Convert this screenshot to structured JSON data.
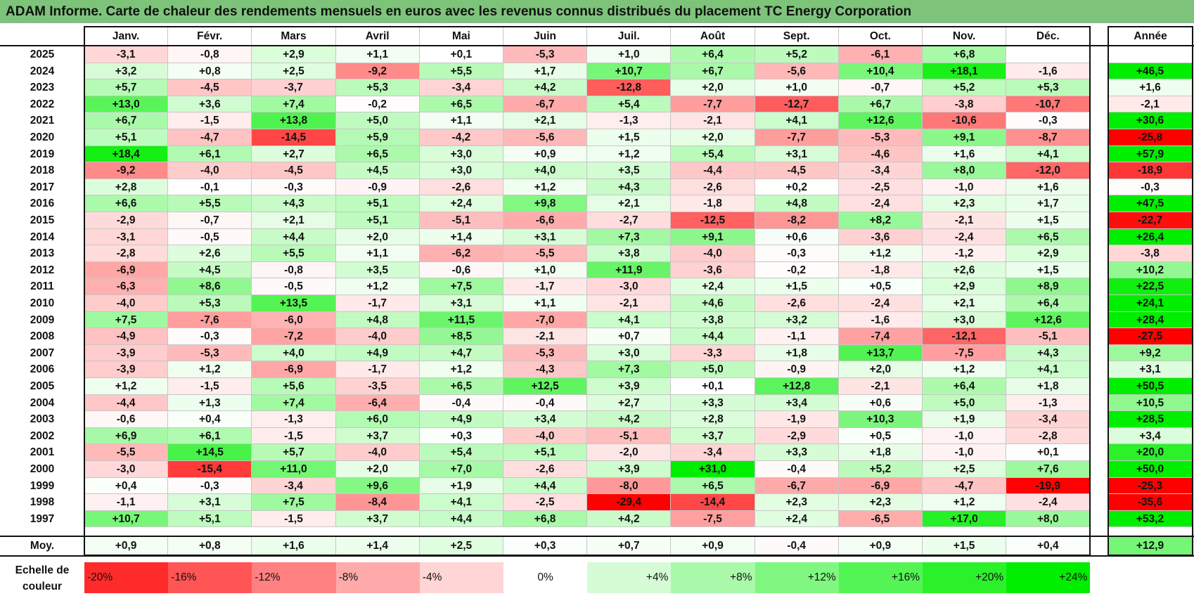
{
  "title": "ADAM Informe. Carte de chaleur des rendements mensuels en euros avec les revenus connus distribués du placement TC Energy Corporation",
  "chart_data": {
    "type": "heatmap",
    "title": "ADAM Informe. Carte de chaleur des rendements mensuels en euros avec les revenus connus distribués du placement TC Energy Corporation",
    "months": [
      "Janv.",
      "Févr.",
      "Mars",
      "Avril",
      "Mai",
      "Juin",
      "Juil.",
      "Août",
      "Sept.",
      "Oct.",
      "Nov.",
      "Déc."
    ],
    "year_header": "Année",
    "average_label": "Moy.",
    "rows": [
      {
        "year": "2025",
        "months": [
          "-3,1",
          "-0,8",
          "+2,9",
          "+1,1",
          "+0,1",
          "-5,3",
          "+1,0",
          "+6,4",
          "+5,2",
          "-6,1",
          "+6,8",
          ""
        ],
        "annual": ""
      },
      {
        "year": "2024",
        "months": [
          "+3,2",
          "+0,8",
          "+2,5",
          "-9,2",
          "+5,5",
          "+1,7",
          "+10,7",
          "+6,7",
          "-5,6",
          "+10,4",
          "+18,1",
          "-1,6"
        ],
        "annual": "+46,5"
      },
      {
        "year": "2023",
        "months": [
          "+5,7",
          "-4,5",
          "-3,7",
          "+5,3",
          "-3,4",
          "+4,2",
          "-12,8",
          "+2,0",
          "+1,0",
          "-0,7",
          "+5,2",
          "+5,3"
        ],
        "annual": "+1,6"
      },
      {
        "year": "2022",
        "months": [
          "+13,0",
          "+3,6",
          "+7,4",
          "-0,2",
          "+6,5",
          "-6,7",
          "+5,4",
          "-7,7",
          "-12,7",
          "+6,7",
          "-3,8",
          "-10,7"
        ],
        "annual": "-2,1"
      },
      {
        "year": "2021",
        "months": [
          "+6,7",
          "-1,5",
          "+13,8",
          "+5,0",
          "+1,1",
          "+2,1",
          "-1,3",
          "-2,1",
          "+4,1",
          "+12,6",
          "-10,6",
          "-0,3"
        ],
        "annual": "+30,6"
      },
      {
        "year": "2020",
        "months": [
          "+5,1",
          "-4,7",
          "-14,5",
          "+5,9",
          "-4,2",
          "-5,6",
          "+1,5",
          "+2,0",
          "-7,7",
          "-5,3",
          "+9,1",
          "-8,7"
        ],
        "annual": "-25,8"
      },
      {
        "year": "2019",
        "months": [
          "+18,4",
          "+6,1",
          "+2,7",
          "+6,5",
          "+3,0",
          "+0,9",
          "+1,2",
          "+5,4",
          "+3,1",
          "-4,6",
          "+1,6",
          "+4,1"
        ],
        "annual": "+57,9"
      },
      {
        "year": "2018",
        "months": [
          "-9,2",
          "-4,0",
          "-4,5",
          "+4,5",
          "+3,0",
          "+4,0",
          "+3,5",
          "-4,4",
          "-4,5",
          "-3,4",
          "+8,0",
          "-12,0"
        ],
        "annual": "-18,9"
      },
      {
        "year": "2017",
        "months": [
          "+2,8",
          "-0,1",
          "-0,3",
          "-0,9",
          "-2,6",
          "+1,2",
          "+4,3",
          "-2,6",
          "+0,2",
          "-2,5",
          "-1,0",
          "+1,6"
        ],
        "annual": "-0,3"
      },
      {
        "year": "2016",
        "months": [
          "+6,6",
          "+5,5",
          "+4,3",
          "+5,1",
          "+2,4",
          "+9,8",
          "+2,1",
          "-1,8",
          "+4,8",
          "-2,4",
          "+2,3",
          "+1,7"
        ],
        "annual": "+47,5"
      },
      {
        "year": "2015",
        "months": [
          "-2,9",
          "-0,7",
          "+2,1",
          "+5,1",
          "-5,1",
          "-6,6",
          "-2,7",
          "-12,5",
          "-8,2",
          "+8,2",
          "-2,1",
          "+1,5"
        ],
        "annual": "-22,7"
      },
      {
        "year": "2014",
        "months": [
          "-3,1",
          "-0,5",
          "+4,4",
          "+2,0",
          "+1,4",
          "+3,1",
          "+7,3",
          "+9,1",
          "+0,6",
          "-3,6",
          "-2,4",
          "+6,5"
        ],
        "annual": "+26,4"
      },
      {
        "year": "2013",
        "months": [
          "-2,8",
          "+2,6",
          "+5,5",
          "+1,1",
          "-6,2",
          "-5,5",
          "+3,8",
          "-4,0",
          "-0,3",
          "+1,2",
          "-1,2",
          "+2,9"
        ],
        "annual": "-3,8"
      },
      {
        "year": "2012",
        "months": [
          "-6,9",
          "+4,5",
          "-0,8",
          "+3,5",
          "-0,6",
          "+1,0",
          "+11,9",
          "-3,6",
          "-0,2",
          "-1,8",
          "+2,6",
          "+1,5"
        ],
        "annual": "+10,2"
      },
      {
        "year": "2011",
        "months": [
          "-6,3",
          "+8,6",
          "-0,5",
          "+1,2",
          "+7,5",
          "-1,7",
          "-3,0",
          "+2,4",
          "+1,5",
          "+0,5",
          "+2,9",
          "+8,9"
        ],
        "annual": "+22,5"
      },
      {
        "year": "2010",
        "months": [
          "-4,0",
          "+5,3",
          "+13,5",
          "-1,7",
          "+3,1",
          "+1,1",
          "-2,1",
          "+4,6",
          "-2,6",
          "-2,4",
          "+2,1",
          "+6,4"
        ],
        "annual": "+24,1"
      },
      {
        "year": "2009",
        "months": [
          "+7,5",
          "-7,6",
          "-6,0",
          "+4,8",
          "+11,5",
          "-7,0",
          "+4,1",
          "+3,8",
          "+3,2",
          "-1,6",
          "+3,0",
          "+12,6"
        ],
        "annual": "+28,4"
      },
      {
        "year": "2008",
        "months": [
          "-4,9",
          "-0,3",
          "-7,2",
          "-4,0",
          "+8,5",
          "-2,1",
          "+0,7",
          "+4,4",
          "-1,1",
          "-7,4",
          "-12,1",
          "-5,1"
        ],
        "annual": "-27,5"
      },
      {
        "year": "2007",
        "months": [
          "-3,9",
          "-5,3",
          "+4,0",
          "+4,9",
          "+4,7",
          "-5,3",
          "+3,0",
          "-3,3",
          "+1,8",
          "+13,7",
          "-7,5",
          "+4,3"
        ],
        "annual": "+9,2"
      },
      {
        "year": "2006",
        "months": [
          "-3,9",
          "+1,2",
          "-6,9",
          "-1,7",
          "+1,2",
          "-4,3",
          "+7,3",
          "+5,0",
          "-0,9",
          "+2,0",
          "+1,2",
          "+4,1"
        ],
        "annual": "+3,1"
      },
      {
        "year": "2005",
        "months": [
          "+1,2",
          "-1,5",
          "+5,6",
          "-3,5",
          "+6,5",
          "+12,5",
          "+3,9",
          "+0,1",
          "+12,8",
          "-2,1",
          "+6,4",
          "+1,8"
        ],
        "annual": "+50,5"
      },
      {
        "year": "2004",
        "months": [
          "-4,4",
          "+1,3",
          "+7,4",
          "-6,4",
          "-0,4",
          "-0,4",
          "+2,7",
          "+3,3",
          "+3,4",
          "+0,6",
          "+5,0",
          "-1,3"
        ],
        "annual": "+10,5"
      },
      {
        "year": "2003",
        "months": [
          "-0,6",
          "+0,4",
          "-1,3",
          "+6,0",
          "+4,9",
          "+3,4",
          "+4,2",
          "+2,8",
          "-1,9",
          "+10,3",
          "+1,9",
          "-3,4"
        ],
        "annual": "+28,5"
      },
      {
        "year": "2002",
        "months": [
          "+6,9",
          "+6,1",
          "-1,5",
          "+3,7",
          "+0,3",
          "-4,0",
          "-5,1",
          "+3,7",
          "-2,9",
          "+0,5",
          "-1,0",
          "-2,8"
        ],
        "annual": "+3,4"
      },
      {
        "year": "2001",
        "months": [
          "-5,5",
          "+14,5",
          "+5,7",
          "-4,0",
          "+5,4",
          "+5,1",
          "-2,0",
          "-3,4",
          "+3,3",
          "+1,8",
          "-1,0",
          "+0,1"
        ],
        "annual": "+20,0"
      },
      {
        "year": "2000",
        "months": [
          "-3,0",
          "-15,4",
          "+11,0",
          "+2,0",
          "+7,0",
          "-2,6",
          "+3,9",
          "+31,0",
          "-0,4",
          "+5,2",
          "+2,5",
          "+7,6"
        ],
        "annual": "+50,0"
      },
      {
        "year": "1999",
        "months": [
          "+0,4",
          "-0,3",
          "-3,4",
          "+9,6",
          "+1,9",
          "+4,4",
          "-8,0",
          "+6,5",
          "-6,7",
          "-6,9",
          "-4,7",
          "-19,9"
        ],
        "annual": "-25,3"
      },
      {
        "year": "1998",
        "months": [
          "-1,1",
          "+3,1",
          "+7,5",
          "-8,4",
          "+4,1",
          "-2,5",
          "-29,4",
          "-14,4",
          "+2,3",
          "+2,3",
          "+1,2",
          "-2,4"
        ],
        "annual": "-35,6"
      },
      {
        "year": "1997",
        "months": [
          "+10,7",
          "+5,1",
          "-1,5",
          "+3,7",
          "+4,4",
          "+6,8",
          "+4,2",
          "-7,5",
          "+2,4",
          "-6,5",
          "+17,0",
          "+8,0"
        ],
        "annual": "+53,2"
      }
    ],
    "average": {
      "months": [
        "+0,9",
        "+0,8",
        "+1,6",
        "+1,4",
        "+2,5",
        "+0,3",
        "+0,7",
        "+0,9",
        "-0,4",
        "+0,9",
        "+1,5",
        "+0,4"
      ],
      "annual": "+12,9"
    },
    "scale_label": "Echelle de couleur",
    "scale": [
      "-20%",
      "-16%",
      "-12%",
      "-8%",
      "-4%",
      "0%",
      "+4%",
      "+8%",
      "+12%",
      "+16%",
      "+20%",
      "+24%"
    ],
    "scale_values": [
      -20,
      -16,
      -12,
      -8,
      -4,
      0,
      4,
      8,
      12,
      16,
      20,
      24
    ],
    "colors": {
      "negative": "#ff0000",
      "neutral": "#ffffff",
      "positive": "#00ee00",
      "title_bg": "#7dc47a"
    }
  }
}
